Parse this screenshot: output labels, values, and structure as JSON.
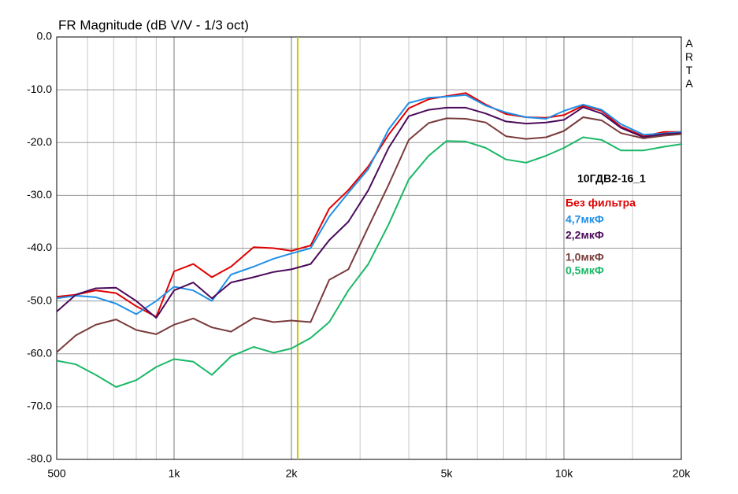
{
  "chart_data": {
    "type": "line",
    "title": "FR Magnitude (dB V/V - 1/3 oct)",
    "side_label": "ARTA",
    "legend_title": "10ГДВ2-16_1",
    "log_x": true,
    "grid": true,
    "xlim": [
      500,
      20000
    ],
    "ylim": [
      -80,
      0
    ],
    "xticks": [
      500,
      {
        "value": 1000,
        "label": "1k"
      },
      {
        "value": 2000,
        "label": "2k"
      },
      {
        "value": 5000,
        "label": "5k"
      },
      {
        "value": 10000,
        "label": "10k"
      },
      {
        "value": 20000,
        "label": "20k"
      }
    ],
    "xminor": [
      600,
      700,
      800,
      900,
      1500,
      3000,
      4000,
      6000,
      7000,
      8000,
      9000,
      15000
    ],
    "yticks": [
      {
        "value": 0,
        "label": "0.0"
      },
      {
        "value": -10,
        "label": "-10.0"
      },
      {
        "value": -20,
        "label": "-20.0"
      },
      {
        "value": -30,
        "label": "-30.0"
      },
      {
        "value": -40,
        "label": "-40.0"
      },
      {
        "value": -50,
        "label": "-50.0"
      },
      {
        "value": -60,
        "label": "-60.0"
      },
      {
        "value": -70,
        "label": "-70.0"
      },
      {
        "value": -80,
        "label": "-80.0"
      }
    ],
    "cursor": 2075,
    "cursor_color": "#c8c800",
    "x": [
      500,
      560,
      630,
      710,
      800,
      900,
      1000,
      1120,
      1250,
      1400,
      1600,
      1800,
      2000,
      2240,
      2500,
      2800,
      3150,
      3550,
      4000,
      4500,
      5000,
      5600,
      6300,
      7100,
      8000,
      9000,
      10000,
      11200,
      12500,
      14000,
      16000,
      18000,
      20000
    ],
    "series": [
      {
        "name": "Без фильтра",
        "color": "#e00000",
        "values": [
          -49.2,
          -48.8,
          -48,
          -48.5,
          -51,
          -53,
          -44.4,
          -43,
          -45.5,
          -43.5,
          -39.8,
          -40,
          -40.5,
          -39.5,
          -32.5,
          -29,
          -24.5,
          -18.5,
          -13.5,
          -11.8,
          -11.2,
          -10.6,
          -12.8,
          -14.6,
          -15.2,
          -15.3,
          -14.8,
          -13,
          -14,
          -17,
          -18.8,
          -18,
          -18
        ]
      },
      {
        "name": "4,7мкФ",
        "color": "#1f8fe8",
        "values": [
          -49.5,
          -49,
          -49.3,
          -50.5,
          -52.5,
          -50,
          -47.3,
          -48,
          -50,
          -45,
          -43.5,
          -42,
          -41,
          -40,
          -34,
          -29.5,
          -25,
          -17.5,
          -12.5,
          -11.5,
          -11.3,
          -11,
          -13,
          -14.3,
          -15.2,
          -15.5,
          -14,
          -12.8,
          -13.8,
          -16.5,
          -18.5,
          -18.3,
          -18
        ]
      },
      {
        "name": "2,2мкФ",
        "color": "#4b0a5a",
        "values": [
          -52,
          -48.8,
          -47.6,
          -47.5,
          -50,
          -53.2,
          -48,
          -46.5,
          -49.5,
          -46.5,
          -45.5,
          -44.5,
          -44,
          -43,
          -38.5,
          -35,
          -29,
          -21,
          -15,
          -13.8,
          -13.4,
          -13.4,
          -14.5,
          -16,
          -16.4,
          -16.2,
          -15.7,
          -13.3,
          -14.5,
          -17.2,
          -19,
          -18.4,
          -18.2
        ]
      },
      {
        "name": "1,0мкФ",
        "color": "#7a3b3b",
        "values": [
          -59.7,
          -56.5,
          -54.5,
          -53.5,
          -55.5,
          -56.3,
          -54.5,
          -53.3,
          -55,
          -55.8,
          -53.2,
          -54,
          -53.7,
          -54,
          -46,
          -44,
          -36,
          -28,
          -19.5,
          -16.3,
          -15.4,
          -15.5,
          -16.2,
          -18.8,
          -19.3,
          -19,
          -17.8,
          -15.2,
          -15.8,
          -18.2,
          -19.2,
          -18.7,
          -18.4
        ]
      },
      {
        "name": "0,5мкФ",
        "color": "#1ab866",
        "values": [
          -61.3,
          -62,
          -64,
          -66.3,
          -65,
          -62.5,
          -61,
          -61.5,
          -64,
          -60.5,
          -58.7,
          -59.8,
          -59,
          -57,
          -54,
          -48,
          -43,
          -35.5,
          -27,
          -22.5,
          -19.7,
          -19.8,
          -21,
          -23.2,
          -23.8,
          -22.5,
          -21,
          -19,
          -19.5,
          -21.5,
          -21.5,
          -20.8,
          -20.3
        ]
      }
    ]
  }
}
